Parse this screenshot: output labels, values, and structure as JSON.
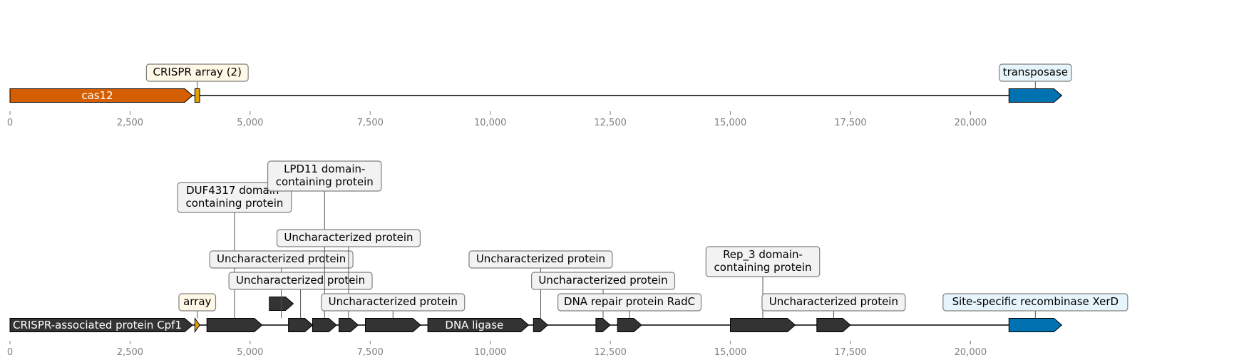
{
  "colors": {
    "cas": "#d55e00",
    "array": "#e69f00",
    "transposase": "#0072b2",
    "other": "#333333",
    "label_bg_array": "#fff8e6",
    "label_bg_transposase": "#e6f4fb",
    "label_bg_other": "#f2f2f2"
  },
  "tracks": [
    {
      "name": "top-track",
      "axis": {
        "min": 0,
        "max": 22000,
        "ticks": [
          "0",
          "2,500",
          "5,000",
          "7,500",
          "10,000",
          "12,500",
          "15,000",
          "17,500",
          "20,000"
        ],
        "tick_values": [
          0,
          2500,
          5000,
          7500,
          10000,
          12500,
          15000,
          17500,
          20000
        ]
      },
      "genes": [
        {
          "id": "cas12",
          "start": 0,
          "end": 3800,
          "strand": 1,
          "category": "cas",
          "inside_label": "cas12"
        },
        {
          "id": "crispr-array",
          "start": 3850,
          "end": 3950,
          "strand": 0,
          "category": "array",
          "label": "CRISPR array (2)",
          "label_level": 1
        },
        {
          "id": "transposase",
          "start": 20800,
          "end": 21900,
          "strand": 1,
          "category": "transposase",
          "label": "transposase",
          "label_level": 1
        }
      ]
    },
    {
      "name": "bottom-track",
      "axis": {
        "min": 0,
        "max": 22000,
        "ticks": [
          "0",
          "2,500",
          "5,000",
          "7,500",
          "10,000",
          "12,500",
          "15,000",
          "17,500",
          "20,000"
        ],
        "tick_values": [
          0,
          2500,
          5000,
          7500,
          10000,
          12500,
          15000,
          17500,
          20000
        ]
      },
      "genes": [
        {
          "id": "cpf1",
          "start": 0,
          "end": 3800,
          "strand": 1,
          "category": "other",
          "inside_label": "CRISPR-associated protein Cpf1"
        },
        {
          "id": "array",
          "start": 3850,
          "end": 3950,
          "strand": 1,
          "category": "array",
          "label": "array",
          "label_level": 1
        },
        {
          "id": "duf4317",
          "start": 4100,
          "end": 5250,
          "strand": 1,
          "category": "other",
          "label": "DUF4317 domain-\ncontaining protein",
          "label_level": 5
        },
        {
          "id": "small-top",
          "start": 5400,
          "end": 5900,
          "strand": 1,
          "category": "other",
          "raised": true
        },
        {
          "id": "unchar-1",
          "start": 5800,
          "end": 6300,
          "strand": 1,
          "category": "other",
          "label": "Uncharacterized protein",
          "label_level": 3,
          "anchor": 5650
        },
        {
          "id": "unchar-2",
          "start": 5800,
          "end": 6300,
          "strand": 1,
          "category": "other",
          "label": "Uncharacterized protein",
          "label_level": 2,
          "anchor": 6050
        },
        {
          "id": "lpd11",
          "start": 6300,
          "end": 6800,
          "strand": 1,
          "category": "other",
          "label": "LPD11 domain-\ncontaining protein",
          "label_level": 6
        },
        {
          "id": "unchar-3",
          "start": 6850,
          "end": 7250,
          "strand": 1,
          "category": "other",
          "label": "Uncharacterized protein",
          "label_level": 4
        },
        {
          "id": "unchar-4",
          "start": 7400,
          "end": 8550,
          "strand": 1,
          "category": "other",
          "label": "Uncharacterized protein",
          "label_level": 1
        },
        {
          "id": "dna-ligase",
          "start": 8700,
          "end": 10800,
          "strand": 1,
          "category": "other",
          "inside_label": "DNA ligase"
        },
        {
          "id": "unchar-5",
          "start": 10900,
          "end": 11200,
          "strand": 1,
          "category": "other",
          "label": "Uncharacterized protein",
          "label_level": 3
        },
        {
          "id": "unchar-6",
          "start": 12200,
          "end": 12500,
          "strand": 1,
          "category": "other",
          "label": "Uncharacterized protein",
          "label_level": 2
        },
        {
          "id": "radc",
          "start": 12650,
          "end": 13150,
          "strand": 1,
          "category": "other",
          "label": "DNA repair protein RadC",
          "label_level": 1
        },
        {
          "id": "rep3",
          "start": 15000,
          "end": 16350,
          "strand": 1,
          "category": "other",
          "label": "Rep_3 domain-\ncontaining protein",
          "label_level": 2
        },
        {
          "id": "unchar-7",
          "start": 16800,
          "end": 17500,
          "strand": 1,
          "category": "other",
          "label": "Uncharacterized protein",
          "label_level": 1
        },
        {
          "id": "xerd",
          "start": 20800,
          "end": 21900,
          "strand": 1,
          "category": "transposase",
          "label": "Site-specific recombinase XerD",
          "label_level": 1
        }
      ]
    }
  ]
}
